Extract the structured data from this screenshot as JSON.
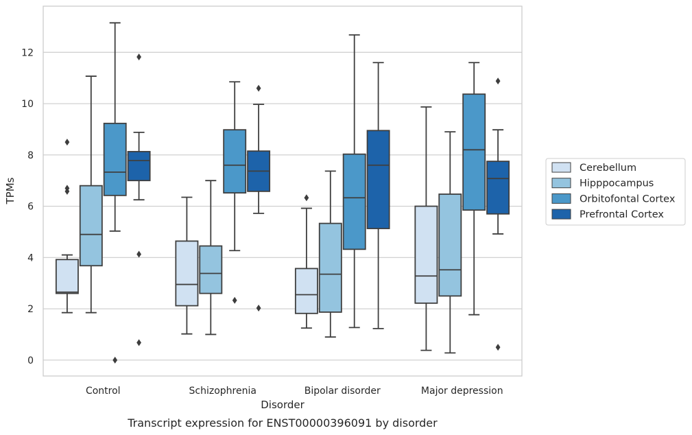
{
  "chart_data": {
    "type": "box",
    "title": "",
    "caption": "Transcript expression for ENST00000396091 by disorder",
    "xlabel": "Disorder",
    "ylabel": "TPMs",
    "ylim": [
      -0.62,
      13.8
    ],
    "yticks": [
      0,
      2,
      4,
      6,
      8,
      10,
      12
    ],
    "grid": "horizontal",
    "legend_position": "right",
    "categories": [
      "Control",
      "Schizophrenia",
      "Bipolar disorder",
      "Major depression"
    ],
    "series": [
      {
        "name": "Cerebellum",
        "color": "#d0e1f2",
        "boxes": [
          {
            "q1": 2.6,
            "median": 2.65,
            "q3": 3.92,
            "whisker_low": 1.85,
            "whisker_high": 4.1,
            "fliers": [
              8.5,
              6.7,
              6.58
            ]
          },
          {
            "q1": 2.12,
            "median": 2.95,
            "q3": 4.64,
            "whisker_low": 1.02,
            "whisker_high": 6.35,
            "fliers": []
          },
          {
            "q1": 1.82,
            "median": 2.55,
            "q3": 3.57,
            "whisker_low": 1.25,
            "whisker_high": 5.92,
            "fliers": [
              6.33
            ]
          },
          {
            "q1": 2.22,
            "median": 3.28,
            "q3": 6.0,
            "whisker_low": 0.38,
            "whisker_high": 9.87,
            "fliers": []
          }
        ]
      },
      {
        "name": "Hipppocampus",
        "color": "#94c4df",
        "boxes": [
          {
            "q1": 3.68,
            "median": 4.9,
            "q3": 6.8,
            "whisker_low": 1.85,
            "whisker_high": 11.07,
            "fliers": []
          },
          {
            "q1": 2.6,
            "median": 3.38,
            "q3": 4.45,
            "whisker_low": 1.0,
            "whisker_high": 7.0,
            "fliers": []
          },
          {
            "q1": 1.87,
            "median": 3.35,
            "q3": 5.33,
            "whisker_low": 0.9,
            "whisker_high": 7.37,
            "fliers": []
          },
          {
            "q1": 2.5,
            "median": 3.52,
            "q3": 6.47,
            "whisker_low": 0.28,
            "whisker_high": 8.9,
            "fliers": []
          }
        ]
      },
      {
        "name": "Orbitofontal Cortex",
        "color": "#4b98c9",
        "boxes": [
          {
            "q1": 6.42,
            "median": 7.33,
            "q3": 9.23,
            "whisker_low": 5.03,
            "whisker_high": 13.15,
            "fliers": [
              0.0
            ]
          },
          {
            "q1": 6.52,
            "median": 7.6,
            "q3": 8.98,
            "whisker_low": 4.27,
            "whisker_high": 10.85,
            "fliers": [
              2.33
            ]
          },
          {
            "q1": 4.32,
            "median": 6.33,
            "q3": 8.03,
            "whisker_low": 1.27,
            "whisker_high": 12.68,
            "fliers": []
          },
          {
            "q1": 5.85,
            "median": 8.2,
            "q3": 10.37,
            "whisker_low": 1.77,
            "whisker_high": 11.6,
            "fliers": []
          }
        ]
      },
      {
        "name": "Prefrontal Cortex",
        "color": "#1d63aa",
        "boxes": [
          {
            "q1": 7.0,
            "median": 7.78,
            "q3": 8.13,
            "whisker_low": 6.25,
            "whisker_high": 8.88,
            "fliers": [
              11.82,
              4.13,
              0.68
            ]
          },
          {
            "q1": 6.58,
            "median": 7.37,
            "q3": 8.15,
            "whisker_low": 5.72,
            "whisker_high": 9.97,
            "fliers": [
              10.6,
              2.03
            ]
          },
          {
            "q1": 5.13,
            "median": 7.6,
            "q3": 8.95,
            "whisker_low": 1.23,
            "whisker_high": 11.6,
            "fliers": []
          },
          {
            "q1": 5.7,
            "median": 7.08,
            "q3": 7.75,
            "whisker_low": 4.92,
            "whisker_high": 8.98,
            "fliers": [
              10.88,
              0.5
            ]
          }
        ]
      }
    ]
  }
}
